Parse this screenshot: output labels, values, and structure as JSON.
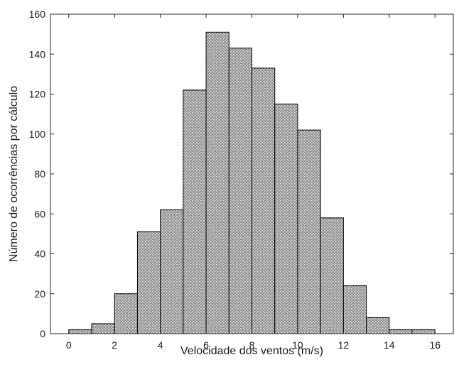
{
  "chart_data": {
    "type": "bar",
    "title": "",
    "xlabel": "Velocidade dos ventos (m/s)",
    "ylabel": "Número de ocorrências por cálculo",
    "bin_edges": [
      0,
      1,
      2,
      3,
      4,
      5,
      6,
      7,
      8,
      9,
      10,
      11,
      12,
      13,
      14,
      15,
      16
    ],
    "values": [
      2,
      5,
      20,
      51,
      62,
      122,
      151,
      143,
      133,
      115,
      102,
      58,
      24,
      8,
      2,
      2
    ],
    "xlim": [
      -0.8,
      16.8
    ],
    "ylim": [
      0,
      160
    ],
    "xticks": [
      0,
      2,
      4,
      6,
      8,
      10,
      12,
      14,
      16
    ],
    "yticks": [
      0,
      20,
      40,
      60,
      80,
      100,
      120,
      140,
      160
    ],
    "xtick_labels": [
      "0",
      "2",
      "4",
      "6",
      "8",
      "10",
      "12",
      "14",
      "16"
    ],
    "ytick_labels": [
      "0",
      "20",
      "40",
      "60",
      "80",
      "100",
      "120",
      "140",
      "160"
    ],
    "grid": false,
    "bar_fill": "hatched gray",
    "colors": {
      "bar_base": "#8a8a8a",
      "bar_dots": "#ededed",
      "edge": "#000000",
      "axis": "#262626"
    }
  }
}
